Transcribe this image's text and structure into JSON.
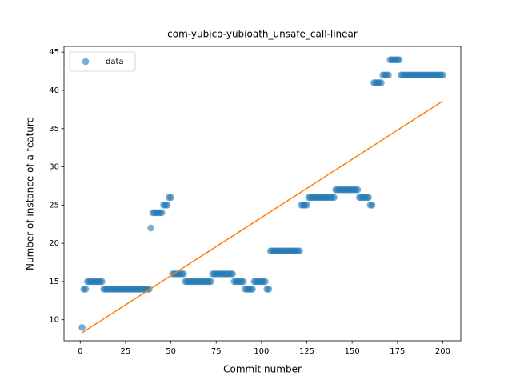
{
  "chart_data": {
    "type": "scatter",
    "title": "com-yubico-yubioath_unsafe_call-linear",
    "xlabel": "Commit number",
    "ylabel": "Number of instance of a feature",
    "xlim": [
      -8.95,
      209.95
    ],
    "ylim": [
      7.25,
      45.75
    ],
    "xticks": [
      0,
      25,
      50,
      75,
      100,
      125,
      150,
      175,
      200
    ],
    "yticks": [
      10,
      15,
      20,
      25,
      30,
      35,
      40,
      45
    ],
    "legend": "upper left",
    "series": [
      {
        "name": "data",
        "color": "#1f77b4",
        "style": "points",
        "x": [
          1,
          2,
          3,
          4,
          5,
          6,
          7,
          8,
          9,
          10,
          11,
          12,
          13,
          14,
          15,
          16,
          17,
          18,
          19,
          20,
          21,
          22,
          23,
          24,
          25,
          26,
          27,
          28,
          29,
          30,
          31,
          32,
          33,
          34,
          35,
          36,
          37,
          38,
          39,
          40,
          41,
          42,
          43,
          44,
          45,
          46,
          47,
          48,
          49,
          50,
          51,
          52,
          53,
          54,
          55,
          56,
          57,
          58,
          59,
          60,
          61,
          62,
          63,
          64,
          65,
          66,
          67,
          68,
          69,
          70,
          71,
          72,
          73,
          74,
          75,
          76,
          77,
          78,
          79,
          80,
          81,
          82,
          83,
          84,
          85,
          86,
          87,
          88,
          89,
          90,
          91,
          92,
          93,
          94,
          95,
          96,
          97,
          98,
          99,
          100,
          101,
          102,
          103,
          104,
          105,
          106,
          107,
          108,
          109,
          110,
          111,
          112,
          113,
          114,
          115,
          116,
          117,
          118,
          119,
          120,
          121,
          122,
          123,
          124,
          125,
          126,
          127,
          128,
          129,
          130,
          131,
          132,
          133,
          134,
          135,
          136,
          137,
          138,
          139,
          140,
          141,
          142,
          143,
          144,
          145,
          146,
          147,
          148,
          149,
          150,
          151,
          152,
          153,
          154,
          155,
          156,
          157,
          158,
          159,
          160,
          161,
          162,
          163,
          164,
          165,
          166,
          167,
          168,
          169,
          170,
          171,
          172,
          173,
          174,
          175,
          176,
          177,
          178,
          179,
          180,
          181,
          182,
          183,
          184,
          185,
          186,
          187,
          188,
          189,
          190,
          191,
          192,
          193,
          194,
          195,
          196,
          197,
          198,
          199,
          200
        ],
        "values": [
          9,
          14,
          14,
          15,
          15,
          15,
          15,
          15,
          15,
          15,
          15,
          15,
          14,
          14,
          14,
          14,
          14,
          14,
          14,
          14,
          14,
          14,
          14,
          14,
          14,
          14,
          14,
          14,
          14,
          14,
          14,
          14,
          14,
          14,
          14,
          14,
          14,
          14,
          22,
          24,
          24,
          24,
          24,
          24,
          24,
          25,
          25,
          25,
          26,
          26,
          16,
          16,
          16,
          16,
          16,
          16,
          16,
          15,
          15,
          15,
          15,
          15,
          15,
          15,
          15,
          15,
          15,
          15,
          15,
          15,
          15,
          15,
          16,
          16,
          16,
          16,
          16,
          16,
          16,
          16,
          16,
          16,
          16,
          16,
          15,
          15,
          15,
          15,
          15,
          15,
          14,
          14,
          14,
          14,
          14,
          15,
          15,
          15,
          15,
          15,
          15,
          15,
          14,
          14,
          19,
          19,
          19,
          19,
          19,
          19,
          19,
          19,
          19,
          19,
          19,
          19,
          19,
          19,
          19,
          19,
          19,
          25,
          25,
          25,
          25,
          26,
          26,
          26,
          26,
          26,
          26,
          26,
          26,
          26,
          26,
          26,
          26,
          26,
          26,
          26,
          27,
          27,
          27,
          27,
          27,
          27,
          27,
          27,
          27,
          27,
          27,
          27,
          27,
          26,
          26,
          26,
          26,
          26,
          26,
          25,
          25,
          41,
          41,
          41,
          41,
          41,
          42,
          42,
          42,
          42,
          44,
          44,
          44,
          44,
          44,
          44,
          42,
          42,
          42,
          42,
          42,
          42,
          42,
          42,
          42,
          42,
          42,
          42,
          42,
          42,
          42,
          42,
          42,
          42,
          42,
          42,
          42,
          42,
          42,
          42
        ]
      },
      {
        "color": "#ff7f0e",
        "style": "line",
        "x": [
          1,
          200
        ],
        "values": [
          8.3,
          38.6
        ]
      }
    ]
  }
}
